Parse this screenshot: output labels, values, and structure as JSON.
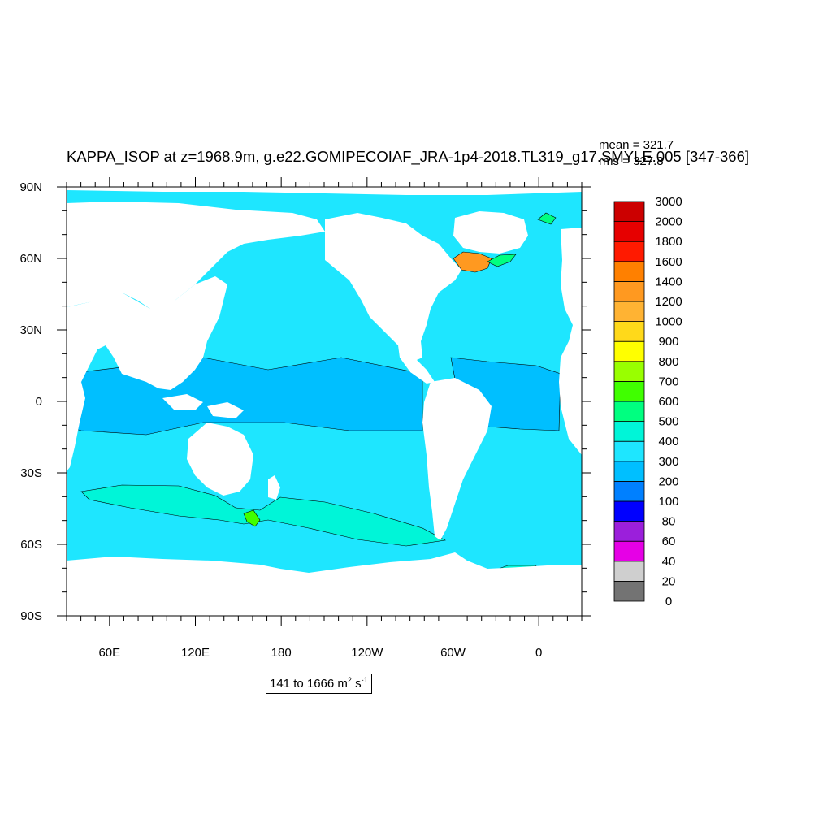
{
  "title": "KAPPA_ISOP at z=1968.9m, g.e22.GOMIPECOIAF_JRA-1p4-2018.TL319_g17.SMYLE.005 [347-366]",
  "stats": {
    "mean": "mean = 321.7",
    "rms": "rms = 327.8"
  },
  "range": {
    "prefix": "141 to 1666 m",
    "exp1": "2",
    "mid": " s",
    "exp2": "-1"
  },
  "map": {
    "lon_range": [
      30,
      390
    ],
    "lat_range": [
      -90,
      90
    ],
    "lat_ticks": [
      {
        "lat": 90,
        "label": "90N"
      },
      {
        "lat": 60,
        "label": "60N"
      },
      {
        "lat": 30,
        "label": "30N"
      },
      {
        "lat": 0,
        "label": "0"
      },
      {
        "lat": -30,
        "label": "30S"
      },
      {
        "lat": -60,
        "label": "60S"
      },
      {
        "lat": -90,
        "label": "90S"
      }
    ],
    "lon_ticks": [
      {
        "lon": 60,
        "label": "60E"
      },
      {
        "lon": 120,
        "label": "120E"
      },
      {
        "lon": 180,
        "label": "180"
      },
      {
        "lon": 240,
        "label": "120W"
      },
      {
        "lon": 300,
        "label": "60W"
      },
      {
        "lon": 360,
        "label": "0"
      }
    ]
  },
  "colorbar": {
    "labels": [
      "0",
      "20",
      "40",
      "60",
      "80",
      "100",
      "200",
      "300",
      "400",
      "500",
      "600",
      "700",
      "800",
      "900",
      "1000",
      "1200",
      "1400",
      "1600",
      "1800",
      "2000",
      "3000"
    ],
    "colors": [
      "#737373",
      "#cfcfcf",
      "#e600e6",
      "#9b1fdb",
      "#0000ff",
      "#0080ff",
      "#00bfff",
      "#1ee6ff",
      "#00f5d8",
      "#00ff80",
      "#40ff00",
      "#99ff00",
      "#ffff00",
      "#ffd91a",
      "#ffb333",
      "#ff9920",
      "#ff8000",
      "#ff1a00",
      "#e60000",
      "#cc0000"
    ]
  },
  "colors": {
    "ocean_300_400": "#1ee6ff",
    "ocean_200_300": "#00bfff",
    "ocean_400_500": "#00f5d8",
    "land": "#ffffff"
  }
}
